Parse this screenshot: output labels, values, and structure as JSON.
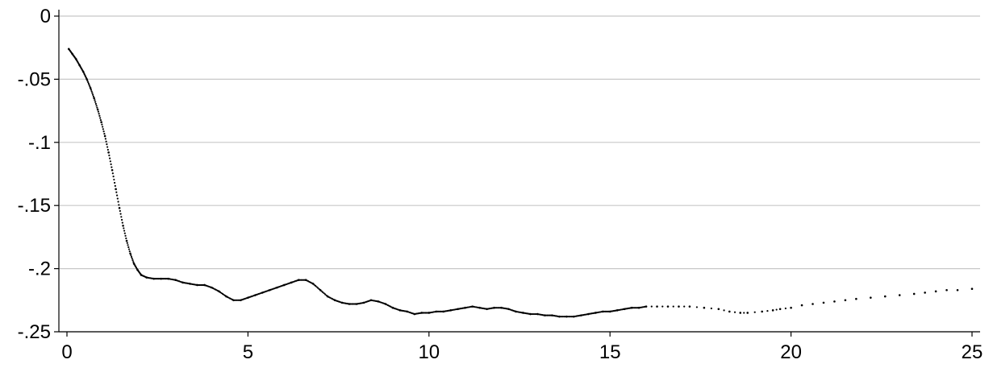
{
  "chart_data": {
    "type": "scatter",
    "title": "",
    "xlabel": "",
    "ylabel": "",
    "xlim": [
      0,
      25
    ],
    "ylim": [
      -0.25,
      0
    ],
    "grid": "horizontal",
    "colors": {
      "marker": "#000000",
      "grid": "#c8c8c8",
      "axis": "#000000"
    },
    "x_ticks": [
      {
        "value": 0,
        "label": "0"
      },
      {
        "value": 5,
        "label": "5"
      },
      {
        "value": 10,
        "label": "10"
      },
      {
        "value": 15,
        "label": "15"
      },
      {
        "value": 20,
        "label": "20"
      },
      {
        "value": 25,
        "label": "25"
      }
    ],
    "y_ticks": [
      {
        "value": 0,
        "label": "0"
      },
      {
        "value": -0.05,
        "label": "-.05"
      },
      {
        "value": -0.1,
        "label": "-.1"
      },
      {
        "value": -0.15,
        "label": "-.15"
      },
      {
        "value": -0.2,
        "label": "-.2"
      },
      {
        "value": -0.25,
        "label": "-.25"
      }
    ],
    "series": [
      {
        "points": [
          [
            0.05,
            -0.026
          ],
          [
            0.15,
            -0.03
          ],
          [
            0.25,
            -0.034
          ],
          [
            0.35,
            -0.039
          ],
          [
            0.45,
            -0.044
          ],
          [
            0.55,
            -0.05
          ],
          [
            0.65,
            -0.057
          ],
          [
            0.75,
            -0.065
          ],
          [
            0.85,
            -0.074
          ],
          [
            0.95,
            -0.084
          ],
          [
            1.05,
            -0.095
          ],
          [
            1.15,
            -0.108
          ],
          [
            1.25,
            -0.122
          ],
          [
            1.35,
            -0.137
          ],
          [
            1.45,
            -0.152
          ],
          [
            1.55,
            -0.166
          ],
          [
            1.65,
            -0.178
          ],
          [
            1.75,
            -0.188
          ],
          [
            1.85,
            -0.196
          ],
          [
            1.95,
            -0.201
          ],
          [
            2.05,
            -0.205
          ],
          [
            2.2,
            -0.207
          ],
          [
            2.4,
            -0.208
          ],
          [
            2.6,
            -0.208
          ],
          [
            2.8,
            -0.208
          ],
          [
            3.0,
            -0.209
          ],
          [
            3.2,
            -0.211
          ],
          [
            3.4,
            -0.212
          ],
          [
            3.6,
            -0.213
          ],
          [
            3.8,
            -0.213
          ],
          [
            4.0,
            -0.215
          ],
          [
            4.2,
            -0.218
          ],
          [
            4.4,
            -0.222
          ],
          [
            4.6,
            -0.225
          ],
          [
            4.8,
            -0.225
          ],
          [
            5.0,
            -0.223
          ],
          [
            5.2,
            -0.221
          ],
          [
            5.4,
            -0.219
          ],
          [
            5.6,
            -0.217
          ],
          [
            5.8,
            -0.215
          ],
          [
            6.0,
            -0.213
          ],
          [
            6.2,
            -0.211
          ],
          [
            6.4,
            -0.209
          ],
          [
            6.6,
            -0.209
          ],
          [
            6.8,
            -0.212
          ],
          [
            7.0,
            -0.217
          ],
          [
            7.2,
            -0.222
          ],
          [
            7.4,
            -0.225
          ],
          [
            7.6,
            -0.227
          ],
          [
            7.8,
            -0.228
          ],
          [
            8.0,
            -0.228
          ],
          [
            8.2,
            -0.227
          ],
          [
            8.4,
            -0.225
          ],
          [
            8.6,
            -0.226
          ],
          [
            8.8,
            -0.228
          ],
          [
            9.0,
            -0.231
          ],
          [
            9.2,
            -0.233
          ],
          [
            9.4,
            -0.234
          ],
          [
            9.6,
            -0.236
          ],
          [
            9.8,
            -0.235
          ],
          [
            10.0,
            -0.235
          ],
          [
            10.2,
            -0.234
          ],
          [
            10.4,
            -0.234
          ],
          [
            10.6,
            -0.233
          ],
          [
            10.8,
            -0.232
          ],
          [
            11.0,
            -0.231
          ],
          [
            11.2,
            -0.23
          ],
          [
            11.4,
            -0.231
          ],
          [
            11.6,
            -0.232
          ],
          [
            11.8,
            -0.231
          ],
          [
            12.0,
            -0.231
          ],
          [
            12.2,
            -0.232
          ],
          [
            12.4,
            -0.234
          ],
          [
            12.6,
            -0.235
          ],
          [
            12.8,
            -0.236
          ],
          [
            13.0,
            -0.236
          ],
          [
            13.2,
            -0.237
          ],
          [
            13.4,
            -0.237
          ],
          [
            13.6,
            -0.238
          ],
          [
            13.8,
            -0.238
          ],
          [
            14.0,
            -0.238
          ],
          [
            14.2,
            -0.237
          ],
          [
            14.4,
            -0.236
          ],
          [
            14.6,
            -0.235
          ],
          [
            14.8,
            -0.234
          ],
          [
            15.0,
            -0.234
          ],
          [
            15.2,
            -0.233
          ],
          [
            15.4,
            -0.232
          ],
          [
            15.6,
            -0.231
          ],
          [
            15.8,
            -0.231
          ],
          [
            16.0,
            -0.23
          ],
          [
            16.3,
            -0.23
          ],
          [
            16.6,
            -0.23
          ],
          [
            16.9,
            -0.23
          ],
          [
            17.2,
            -0.23
          ],
          [
            17.6,
            -0.231
          ],
          [
            18.0,
            -0.232
          ],
          [
            18.3,
            -0.234
          ],
          [
            18.6,
            -0.235
          ],
          [
            18.8,
            -0.235
          ],
          [
            19.2,
            -0.234
          ],
          [
            19.5,
            -0.233
          ],
          [
            19.7,
            -0.232
          ],
          [
            20.0,
            -0.231
          ],
          [
            20.3,
            -0.229
          ],
          [
            20.6,
            -0.228
          ],
          [
            20.9,
            -0.227
          ],
          [
            21.2,
            -0.226
          ],
          [
            21.5,
            -0.225
          ],
          [
            21.8,
            -0.224
          ],
          [
            22.2,
            -0.223
          ],
          [
            22.6,
            -0.222
          ],
          [
            23.0,
            -0.221
          ],
          [
            23.4,
            -0.22
          ],
          [
            23.7,
            -0.219
          ],
          [
            24.0,
            -0.218
          ],
          [
            24.3,
            -0.217
          ],
          [
            24.6,
            -0.217
          ],
          [
            25.0,
            -0.216
          ]
        ]
      }
    ]
  }
}
